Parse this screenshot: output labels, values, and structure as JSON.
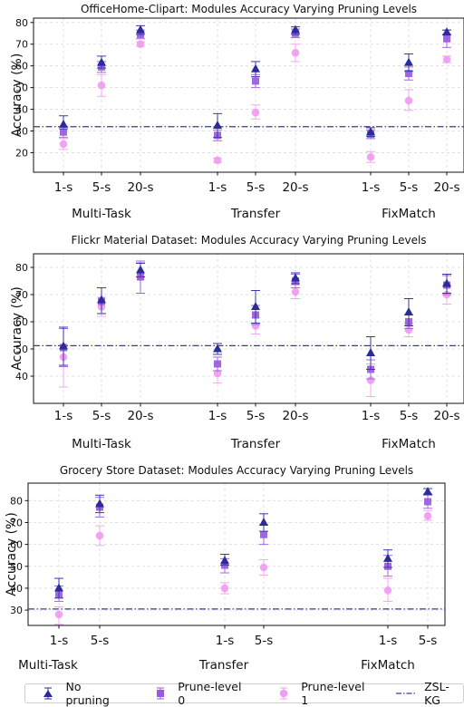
{
  "chart_data": [
    {
      "type": "scatter",
      "title": "OfficeHome-Clipart: Modules Accuracy Varying Pruning Levels",
      "ylabel": "Accuracy (%)",
      "ylim": [
        11,
        82
      ],
      "yticks": [
        20,
        30,
        40,
        50,
        60,
        70,
        80
      ],
      "groups": [
        "Multi-Task",
        "Transfer",
        "FixMatch"
      ],
      "shot_labels": [
        "1-s",
        "5-s",
        "20-s"
      ],
      "baseline": {
        "name": "ZSL-KG",
        "value": 32
      },
      "series": [
        {
          "name": "No pruning",
          "values": [
            [
              33,
              31,
              37
            ],
            [
              61.5,
              59,
              64.5
            ],
            [
              76.5,
              74.5,
              78.5
            ],
            [
              32.5,
              27,
              38
            ],
            [
              58.5,
              55,
              62
            ],
            [
              76.5,
              74.5,
              78
            ],
            [
              29.5,
              27.5,
              31.5
            ],
            [
              61.5,
              57.5,
              65.5
            ],
            [
              75.5,
              74.5,
              76.5
            ]
          ]
        },
        {
          "name": "Prune-level 0",
          "values": [
            [
              29.5,
              27,
              32
            ],
            [
              59.5,
              57,
              62
            ],
            [
              74.5,
              72.5,
              76.5
            ],
            [
              28,
              25.5,
              30.5
            ],
            [
              53,
              50,
              56
            ],
            [
              75,
              73,
              77
            ],
            [
              28.5,
              26.5,
              30.5
            ],
            [
              56.5,
              53.5,
              59.5
            ],
            [
              72.5,
              68.5,
              76.5
            ]
          ]
        },
        {
          "name": "Prune-level 1",
          "values": [
            [
              24,
              21.5,
              26.5
            ],
            [
              51,
              46,
              56
            ],
            [
              70,
              69,
              71
            ],
            [
              16.5,
              15.5,
              17.5
            ],
            [
              38.5,
              35.5,
              42
            ],
            [
              66,
              62,
              70
            ],
            [
              18,
              15.5,
              20.5
            ],
            [
              44,
              39.5,
              49
            ],
            [
              63,
              61.5,
              64.5
            ]
          ]
        }
      ]
    },
    {
      "type": "scatter",
      "title": "Flickr Material Dataset: Modules Accuracy Varying Pruning Levels",
      "ylabel": "Accuracy (%)",
      "ylim": [
        30,
        85
      ],
      "yticks": [
        40,
        50,
        60,
        70,
        80
      ],
      "groups": [
        "Multi-Task",
        "Transfer",
        "FixMatch"
      ],
      "shot_labels": [
        "1-s",
        "5-s",
        "20-s"
      ],
      "baseline": {
        "name": "ZSL-KG",
        "value": 51.2
      },
      "series": [
        {
          "name": "No pruning",
          "values": [
            [
              51,
              44,
              58
            ],
            [
              68,
              63,
              72.5
            ],
            [
              79,
              76.5,
              81.5
            ],
            [
              50,
              48,
              52
            ],
            [
              65.5,
              59.5,
              71.5
            ],
            [
              76,
              74,
              78
            ],
            [
              48.5,
              42.5,
              54.5
            ],
            [
              63.5,
              58.5,
              68.5
            ],
            [
              74,
              70.5,
              77.5
            ]
          ]
        },
        {
          "name": "Prune-level 0",
          "values": [
            [
              50.5,
              43.5,
              57.5
            ],
            [
              67.5,
              63,
              72.5
            ],
            [
              76.5,
              70.5,
              82
            ],
            [
              44.5,
              42,
              47
            ],
            [
              62.5,
              59,
              66
            ],
            [
              75,
              72.5,
              77.5
            ],
            [
              42.5,
              39,
              46
            ],
            [
              60,
              57.5,
              62.5
            ],
            [
              73.5,
              70,
              77
            ]
          ]
        },
        {
          "name": "Prune-level 1",
          "values": [
            [
              47,
              36,
              58
            ],
            [
              65.5,
              62,
              69
            ],
            [
              76.5,
              70.5,
              82.5
            ],
            [
              41,
              37.5,
              44.5
            ],
            [
              58.5,
              55.5,
              61.5
            ],
            [
              71,
              68.5,
              73.5
            ],
            [
              38.5,
              32.5,
              44.5
            ],
            [
              57,
              54.5,
              59.5
            ],
            [
              70,
              66.5,
              73.5
            ]
          ]
        }
      ]
    },
    {
      "type": "scatter",
      "title": "Grocery Store Dataset: Modules Accuracy Varying Pruning Levels",
      "ylabel": "Accuracy (%)",
      "ylim": [
        23,
        88
      ],
      "yticks": [
        30,
        40,
        50,
        60,
        70,
        80
      ],
      "groups": [
        "Multi-Task",
        "Transfer",
        "FixMatch"
      ],
      "shot_labels": [
        "1-s",
        "5-s"
      ],
      "baseline": {
        "name": "ZSL-KG",
        "value": 30.5
      },
      "series": [
        {
          "name": "No pruning",
          "values": [
            [
              40,
              35.5,
              44.5
            ],
            [
              78.5,
              74.5,
              82.5
            ],
            [
              52.5,
              50.5,
              55.5
            ],
            [
              70,
              66,
              74
            ],
            [
              53.5,
              49.5,
              57.5
            ],
            [
              84,
              83,
              85.5
            ]
          ]
        },
        {
          "name": "Prune-level 0",
          "values": [
            [
              37,
              34,
              41
            ],
            [
              77,
              72.5,
              81.5
            ],
            [
              50.5,
              47,
              53.5
            ],
            [
              64.5,
              60,
              69
            ],
            [
              50,
              45.5,
              55
            ],
            [
              79.5,
              76.5,
              82.5
            ]
          ]
        },
        {
          "name": "Prune-level 1",
          "values": [
            [
              28,
              23.5,
              31.5
            ],
            [
              64,
              59.5,
              68.5
            ],
            [
              40,
              37.5,
              42.5
            ],
            [
              49.5,
              46,
              53
            ],
            [
              39,
              34,
              44.5
            ],
            [
              73,
              71,
              75.5
            ]
          ]
        }
      ]
    }
  ],
  "legend": {
    "items": [
      {
        "label": "No pruning",
        "color": "#2b2b9a",
        "marker": "triangle"
      },
      {
        "label": "Prune-level 0",
        "color": "#9a5ae0",
        "marker": "square"
      },
      {
        "label": "Prune-level 1",
        "color": "#f09cf0",
        "marker": "circle"
      },
      {
        "label": "ZSL-KG",
        "color": "#3a3a9a",
        "marker": "dashdot-line"
      }
    ]
  }
}
